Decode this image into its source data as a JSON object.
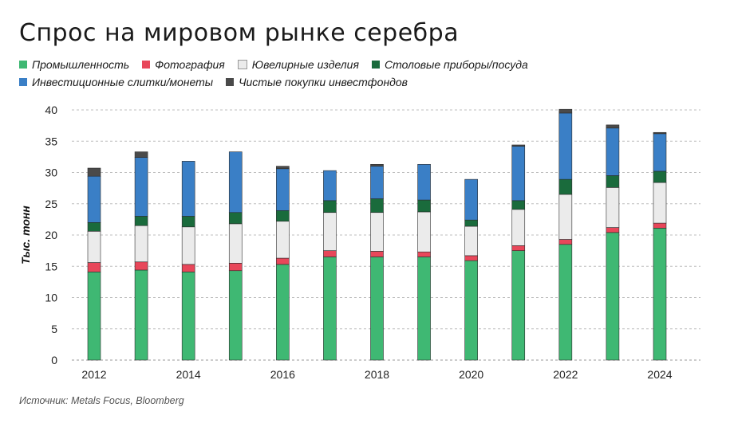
{
  "title": "Спрос на мировом рынке серебра",
  "source": "Источник: Metals Focus, Bloomberg",
  "chart_data": {
    "type": "bar",
    "stacked": true,
    "title": "Спрос на мировом рынке серебра",
    "ylabel": "Тыс. тонн",
    "ylim": [
      0,
      40
    ],
    "yticks": [
      0,
      5,
      10,
      15,
      20,
      25,
      30,
      35,
      40
    ],
    "grid": "horizontal-dashed",
    "legend_placement": "top",
    "x": [
      2012,
      2013,
      2014,
      2015,
      2016,
      2017,
      2018,
      2019,
      2020,
      2021,
      2022,
      2023,
      2024
    ],
    "xtick_labels": [
      "2012",
      "2014",
      "2016",
      "2018",
      "2020",
      "2022",
      "2024"
    ],
    "series": [
      {
        "name": "Промышленность",
        "color": "#3fb873",
        "values": [
          14.1,
          14.4,
          14.1,
          14.3,
          15.3,
          16.5,
          16.5,
          16.5,
          15.9,
          17.5,
          18.5,
          20.4,
          21.1
        ]
      },
      {
        "name": "Фотография",
        "color": "#e8475a",
        "values": [
          1.5,
          1.3,
          1.2,
          1.2,
          1.0,
          1.0,
          0.9,
          0.8,
          0.8,
          0.8,
          0.8,
          0.8,
          0.8
        ]
      },
      {
        "name": "Ювелирные изделия",
        "color": "#ebebeb",
        "values": [
          5.0,
          5.8,
          6.0,
          6.3,
          5.9,
          6.1,
          6.2,
          6.4,
          4.7,
          5.8,
          7.2,
          6.4,
          6.5
        ]
      },
      {
        "name": "Столовые приборы/посуда",
        "color": "#1a6b3c",
        "values": [
          1.4,
          1.5,
          1.7,
          1.8,
          1.7,
          1.9,
          2.2,
          1.9,
          1.0,
          1.4,
          2.4,
          1.9,
          1.8
        ]
      },
      {
        "name": "Инвестиционные слитки/монеты",
        "color": "#3a7fc6",
        "values": [
          7.4,
          9.4,
          8.8,
          9.7,
          6.7,
          4.8,
          5.2,
          5.7,
          6.5,
          8.7,
          10.6,
          7.6,
          6.0
        ]
      },
      {
        "name": "Чистые покупки инвестфондов",
        "color": "#4a4a4a",
        "values": [
          1.3,
          0.9,
          0.0,
          0.0,
          0.4,
          0.0,
          0.3,
          0.0,
          0.0,
          0.2,
          0.6,
          0.5,
          0.2
        ]
      }
    ]
  }
}
